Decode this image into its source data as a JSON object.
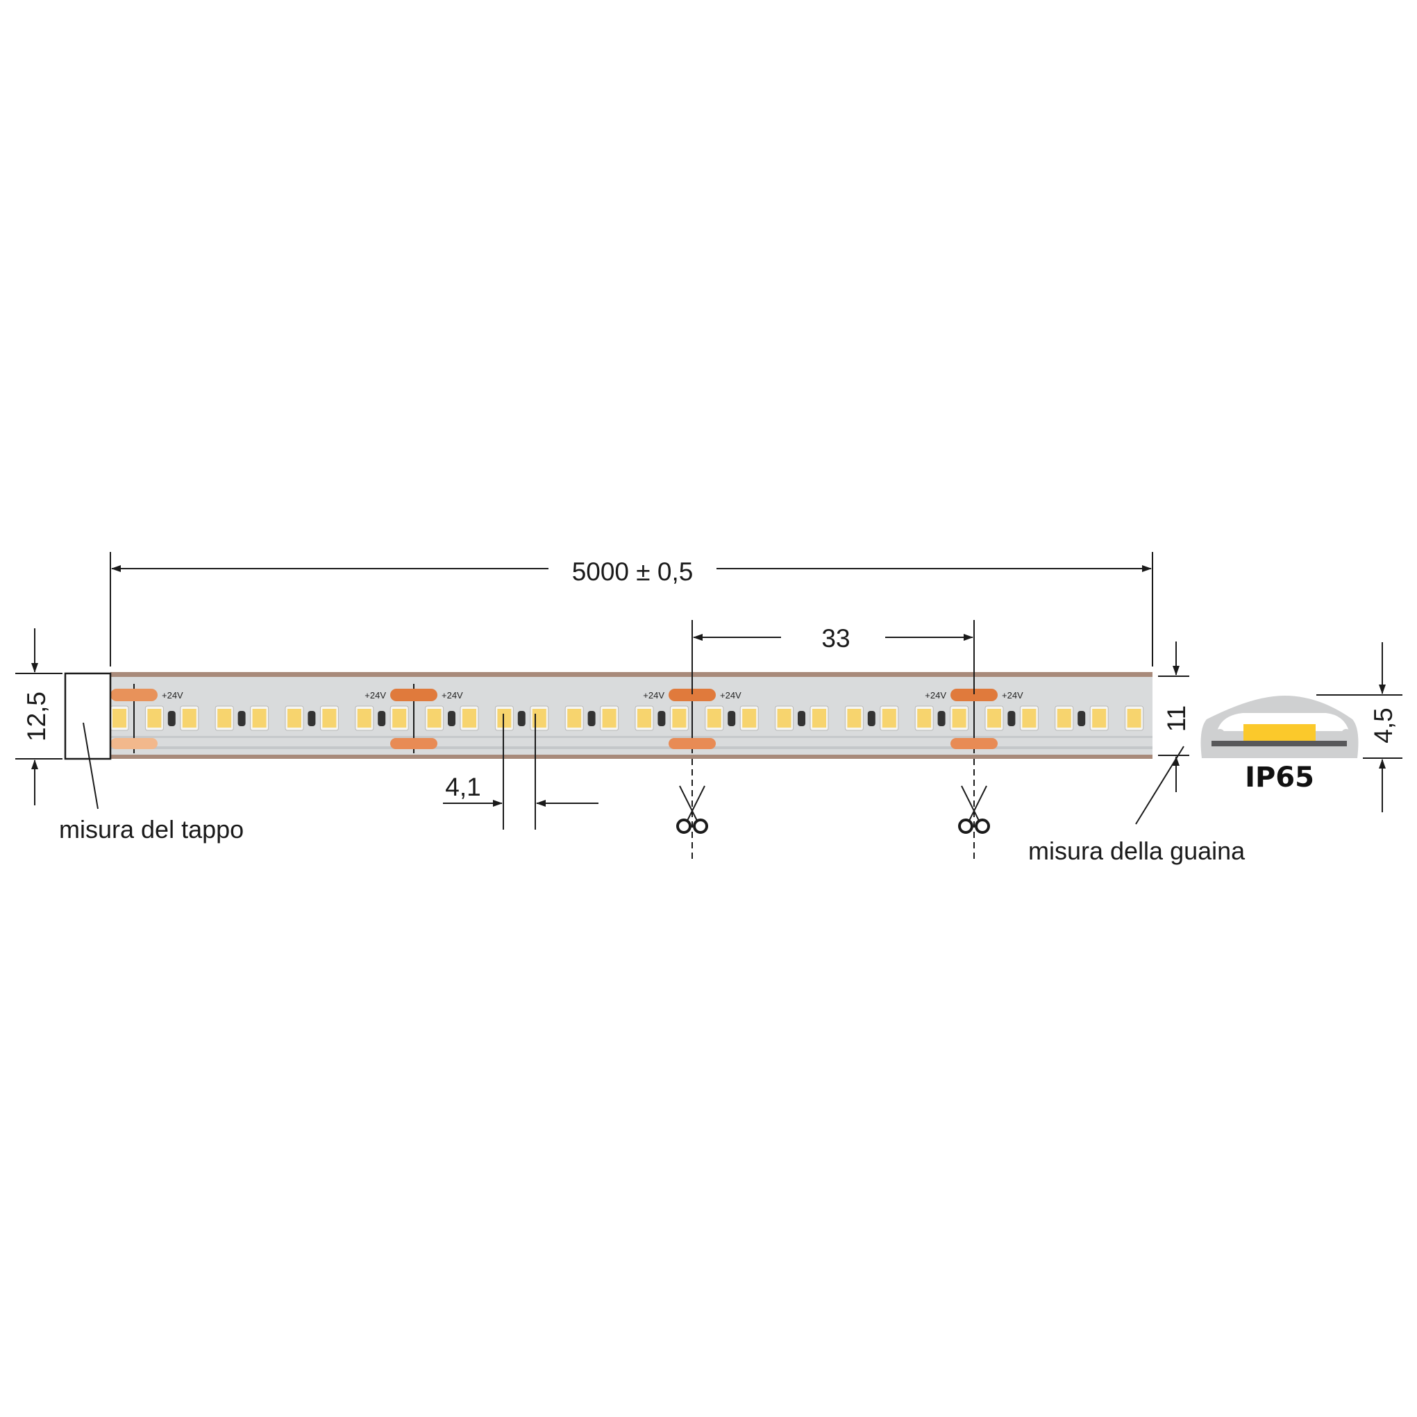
{
  "dimensions": {
    "length": "5000 ± 0,5",
    "cut_pitch": "33",
    "led_pitch": "4,1",
    "cap_height": "12,5",
    "sheath_height": "11",
    "profile_height": "4,5"
  },
  "labels": {
    "cap": "misura del tappo",
    "sheath": "misura della guaina",
    "ip_rating": "IP65",
    "pad_voltage": "+24V"
  },
  "icons": [
    "scissors-icon",
    "scissors-icon"
  ],
  "colors": {
    "led": "#f7d46e",
    "pad": "#e07a3c",
    "strip": "#d9dbdc",
    "profile": "#cfd0d1",
    "chip": "#fbc92b",
    "pcb": "#58585a"
  }
}
